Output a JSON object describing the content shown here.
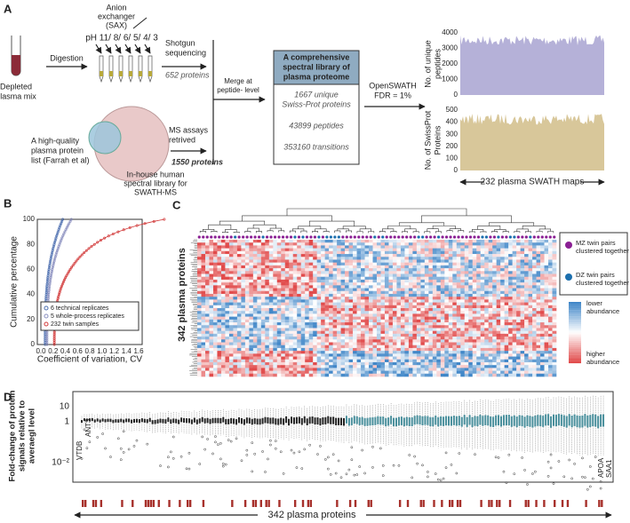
{
  "panel_a": {
    "letter": "A",
    "depleted": [
      "Depleted",
      "plasma mix"
    ],
    "digestion": "Digestion",
    "sax": [
      "Anion",
      "exchanger",
      "(SAX)"
    ],
    "ph": "pH 11/ 8/ 6/ 5/ 4/ 3",
    "shotgun": [
      "Shotgun",
      "sequencing"
    ],
    "shotgun_count": "652 proteins",
    "hq_list": [
      "A high-quality",
      "plasma protein",
      "list (Farrah et al)"
    ],
    "inhouse": [
      "In-house human",
      "spectral library for",
      "SWATH-MS"
    ],
    "ms_assays": [
      "MS assays",
      "retrived"
    ],
    "assay_count": "1550 proteins",
    "merge": [
      "Merge at",
      "peptide- level"
    ],
    "library_title": [
      "A comprehensive",
      "spectral library of",
      "plasma proteome"
    ],
    "library_items": [
      [
        "1667 unique",
        "Swiss-Prot proteins"
      ],
      [
        "43899 peptides"
      ],
      [
        "353160 transitions"
      ]
    ],
    "openswath": [
      "OpenSWATH",
      "FDR = 1%"
    ],
    "peptides_plot": {
      "ylabel": [
        "No. of unique",
        "peptides"
      ],
      "yticks": [
        "0",
        "1000",
        "2000",
        "3000",
        "4000"
      ]
    },
    "proteins_plot": {
      "ylabel": [
        "No. of SwissProt",
        "Proteins"
      ],
      "yticks": [
        "0",
        "100",
        "200",
        "300",
        "400",
        "500"
      ]
    },
    "maps": "232 plasma SWATH maps"
  },
  "panel_b": {
    "letter": "B",
    "ylabel": "Cumulative percentage",
    "xlabel": "Coefficient of variation, CV",
    "yticks": [
      "0",
      "20",
      "40",
      "60",
      "80",
      "100"
    ],
    "xticks": [
      "0.0",
      "0.2",
      "0.4",
      "0.6",
      "0.8",
      "1.0",
      "1.2",
      "1.4",
      "1.6"
    ],
    "legend": [
      "6 technical replicates",
      "5 whole-process replicates",
      "232 twin samples"
    ]
  },
  "panel_c": {
    "letter": "C",
    "rows": "342 plasma proteins",
    "mz": [
      "MZ twin pairs",
      "clustered together"
    ],
    "dz": [
      "DZ twin pairs",
      "clustered together"
    ],
    "lower": [
      "lower",
      "abundance"
    ],
    "higher": [
      "higher",
      "abundance"
    ]
  },
  "panel_d": {
    "letter": "D",
    "ylabel": [
      "Fold-change of protein",
      "signals relative to",
      "averaegl level"
    ],
    "yticks": [
      "10",
      "1",
      "10⁻²"
    ],
    "proteins_left": [
      "VTDB",
      "ANT3"
    ],
    "proteins_right": [
      "APOA",
      "SAA1"
    ],
    "span": "342 plasma proteins"
  }
}
